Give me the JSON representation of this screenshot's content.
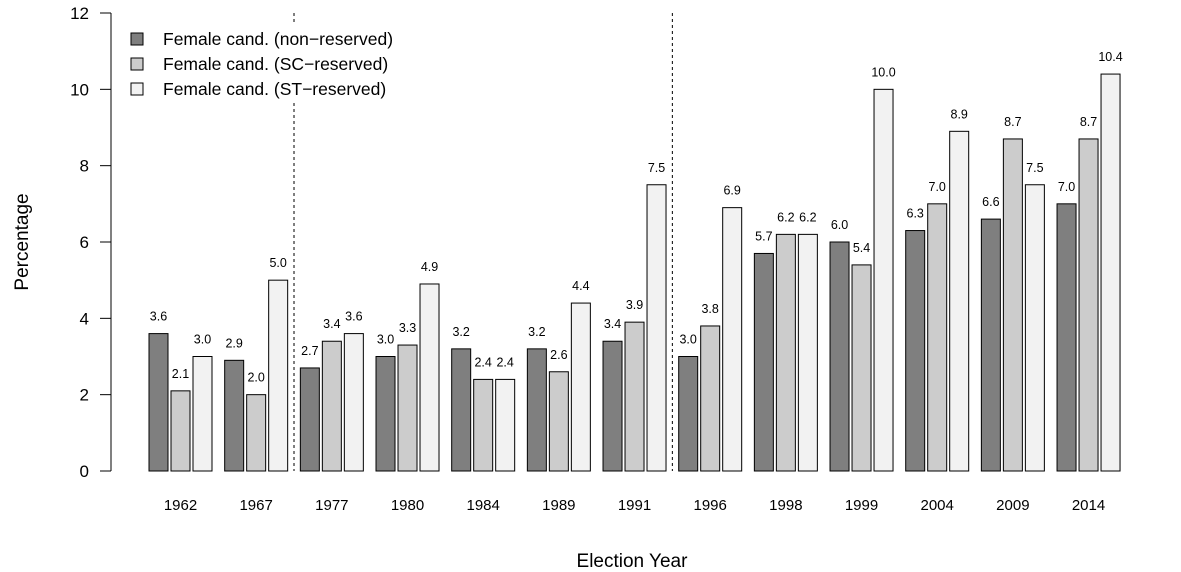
{
  "chart_data": {
    "type": "bar",
    "title": "",
    "xlabel": "Election Year",
    "ylabel": "Percentage",
    "ylim": [
      0,
      12
    ],
    "yticks": [
      0,
      2,
      4,
      6,
      8,
      10,
      12
    ],
    "grid": false,
    "legend_position": "top-left",
    "categories": [
      "1962",
      "1967",
      "1977",
      "1980",
      "1984",
      "1989",
      "1991",
      "1996",
      "1998",
      "1999",
      "2004",
      "2009",
      "2014"
    ],
    "series": [
      {
        "name": "Female cand. (non−reserved)",
        "color": "#7f7f7f",
        "values": [
          3.6,
          2.9,
          2.7,
          3.0,
          3.2,
          3.2,
          3.4,
          3.0,
          5.7,
          6.0,
          6.3,
          6.6,
          7.0
        ],
        "labels": [
          "3.6",
          "2.9",
          "2.7",
          "3.0",
          "3.2",
          "3.2",
          "3.4",
          "3.0",
          "5.7",
          "6.0",
          "6.3",
          "6.6",
          "7.0"
        ]
      },
      {
        "name": "Female cand. (SC−reserved)",
        "color": "#cccccc",
        "values": [
          2.1,
          2.0,
          3.4,
          3.3,
          2.4,
          2.6,
          3.9,
          3.8,
          6.2,
          5.4,
          7.0,
          8.7,
          8.7
        ],
        "labels": [
          "2.1",
          "2.0",
          "3.4",
          "3.3",
          "2.4",
          "2.6",
          "3.9",
          "3.8",
          "6.2",
          "5.4",
          "7.0",
          "8.7",
          "8.7"
        ]
      },
      {
        "name": "Female cand. (ST−reserved)",
        "color": "#f2f2f2",
        "values": [
          3.0,
          5.0,
          3.6,
          4.9,
          2.4,
          4.4,
          7.5,
          6.9,
          6.2,
          10.0,
          8.9,
          7.5,
          10.4
        ],
        "labels": [
          "3.0",
          "5.0",
          "3.6",
          "4.9",
          "2.4",
          "4.4",
          "7.5",
          "6.9",
          "6.2",
          "10.0",
          "8.9",
          "7.5",
          "10.4"
        ]
      }
    ],
    "dashed_separators_after": [
      "1967",
      "1991"
    ]
  }
}
